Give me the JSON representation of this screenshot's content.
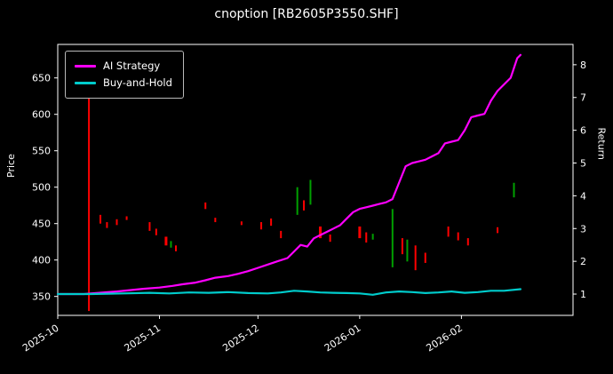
{
  "title": "cnoption [RB2605P3550.SHF]",
  "colors": {
    "background": "#000000",
    "text": "#ffffff",
    "spine": "#ffffff",
    "ai_strategy": "#ff00ff",
    "buy_and_hold": "#00cccc",
    "up_marker": "#00a000",
    "down_marker": "#ff0000"
  },
  "chart_data": {
    "type": "line",
    "title": "cnoption [RB2605P3550.SHF]",
    "xlabel": "",
    "ylabel_left": "Price",
    "ylabel_right": "Return",
    "legend_position": "upper-left",
    "grid": false,
    "xlim": [
      0,
      157
    ],
    "x_tick_days": [
      0,
      31,
      61,
      92,
      123
    ],
    "x_ticks": [
      "2025-10",
      "2025-11",
      "2025-12",
      "2026-01",
      "2026-02"
    ],
    "left_ylim": [
      324,
      696
    ],
    "left_ticks": [
      350,
      400,
      450,
      500,
      550,
      600,
      650
    ],
    "right_ylim": [
      0.35,
      8.62
    ],
    "right_ticks": [
      1,
      2,
      3,
      4,
      5,
      6,
      7,
      8
    ],
    "series": [
      {
        "name": "AI Strategy",
        "color": "#ff00ff",
        "axis": "right",
        "x": [
          0,
          8,
          10,
          14,
          18,
          22,
          26,
          31,
          35,
          38,
          42,
          45,
          48,
          52,
          55,
          58,
          61,
          64,
          67,
          70,
          72,
          74,
          76,
          78,
          80,
          82,
          84,
          86,
          88,
          90,
          92,
          94,
          96,
          98,
          100,
          102,
          104,
          106,
          108,
          110,
          112,
          114,
          116,
          118,
          120,
          122,
          124,
          126,
          128,
          130,
          132,
          134,
          136,
          138,
          139,
          140,
          141
        ],
        "values": [
          1.0,
          1.0,
          1.02,
          1.05,
          1.08,
          1.12,
          1.16,
          1.2,
          1.25,
          1.3,
          1.35,
          1.42,
          1.5,
          1.55,
          1.62,
          1.7,
          1.8,
          1.9,
          2.0,
          2.1,
          2.3,
          2.5,
          2.45,
          2.7,
          2.8,
          2.9,
          3.0,
          3.1,
          3.3,
          3.5,
          3.6,
          3.65,
          3.7,
          3.75,
          3.8,
          3.9,
          4.4,
          4.9,
          5.0,
          5.05,
          5.1,
          5.2,
          5.3,
          5.6,
          5.65,
          5.7,
          6.0,
          6.4,
          6.45,
          6.5,
          6.9,
          7.2,
          7.4,
          7.6,
          7.9,
          8.2,
          8.3
        ]
      },
      {
        "name": "Buy-and-Hold",
        "color": "#00cccc",
        "axis": "right",
        "x": [
          0,
          10,
          20,
          28,
          34,
          40,
          46,
          52,
          58,
          64,
          68,
          72,
          76,
          80,
          84,
          88,
          92,
          96,
          100,
          104,
          108,
          112,
          116,
          120,
          124,
          128,
          132,
          136,
          141
        ],
        "values": [
          1.0,
          1.0,
          1.02,
          1.04,
          1.02,
          1.05,
          1.04,
          1.06,
          1.03,
          1.02,
          1.05,
          1.1,
          1.08,
          1.05,
          1.04,
          1.03,
          1.02,
          0.98,
          1.05,
          1.08,
          1.06,
          1.03,
          1.05,
          1.08,
          1.04,
          1.06,
          1.1,
          1.1,
          1.15
        ]
      }
    ],
    "price_markers": [
      {
        "d": 9.5,
        "lo": 330,
        "hi": 655,
        "color": "#ff0000",
        "w": 2
      },
      {
        "d": 13,
        "lo": 450,
        "hi": 462,
        "color": "#ff0000",
        "w": 2
      },
      {
        "d": 15,
        "lo": 444,
        "hi": 452,
        "color": "#ff0000",
        "w": 2
      },
      {
        "d": 18,
        "lo": 448,
        "hi": 456,
        "color": "#ff0000",
        "w": 2
      },
      {
        "d": 21,
        "lo": 455,
        "hi": 460,
        "color": "#ff0000",
        "w": 2
      },
      {
        "d": 28,
        "lo": 440,
        "hi": 452,
        "color": "#ff0000",
        "w": 2
      },
      {
        "d": 30,
        "lo": 434,
        "hi": 443,
        "color": "#ff0000",
        "w": 2
      },
      {
        "d": 33,
        "lo": 420,
        "hi": 432,
        "color": "#ff0000",
        "w": 3
      },
      {
        "d": 34.5,
        "lo": 417,
        "hi": 426,
        "color": "#00a000",
        "w": 2
      },
      {
        "d": 36,
        "lo": 412,
        "hi": 420,
        "color": "#ff0000",
        "w": 2
      },
      {
        "d": 45,
        "lo": 470,
        "hi": 479,
        "color": "#ff0000",
        "w": 2
      },
      {
        "d": 48,
        "lo": 452,
        "hi": 458,
        "color": "#ff0000",
        "w": 2
      },
      {
        "d": 56,
        "lo": 448,
        "hi": 453,
        "color": "#ff0000",
        "w": 2
      },
      {
        "d": 62,
        "lo": 442,
        "hi": 452,
        "color": "#ff0000",
        "w": 2
      },
      {
        "d": 65,
        "lo": 447,
        "hi": 457,
        "color": "#ff0000",
        "w": 2
      },
      {
        "d": 68,
        "lo": 430,
        "hi": 440,
        "color": "#ff0000",
        "w": 2
      },
      {
        "d": 73,
        "lo": 462,
        "hi": 500,
        "color": "#00a000",
        "w": 2
      },
      {
        "d": 75,
        "lo": 468,
        "hi": 482,
        "color": "#ff0000",
        "w": 2
      },
      {
        "d": 77,
        "lo": 476,
        "hi": 510,
        "color": "#00a000",
        "w": 2
      },
      {
        "d": 80,
        "lo": 430,
        "hi": 446,
        "color": "#ff0000",
        "w": 3
      },
      {
        "d": 83,
        "lo": 425,
        "hi": 435,
        "color": "#ff0000",
        "w": 2
      },
      {
        "d": 92,
        "lo": 430,
        "hi": 446,
        "color": "#ff0000",
        "w": 3
      },
      {
        "d": 94,
        "lo": 424,
        "hi": 438,
        "color": "#ff0000",
        "w": 2
      },
      {
        "d": 96,
        "lo": 428,
        "hi": 436,
        "color": "#00a000",
        "w": 2
      },
      {
        "d": 102,
        "lo": 390,
        "hi": 470,
        "color": "#00a000",
        "w": 2
      },
      {
        "d": 105,
        "lo": 408,
        "hi": 430,
        "color": "#ff0000",
        "w": 2
      },
      {
        "d": 106.5,
        "lo": 398,
        "hi": 428,
        "color": "#00a000",
        "w": 2
      },
      {
        "d": 109,
        "lo": 386,
        "hi": 420,
        "color": "#ff0000",
        "w": 2
      },
      {
        "d": 112,
        "lo": 396,
        "hi": 410,
        "color": "#ff0000",
        "w": 2
      },
      {
        "d": 119,
        "lo": 432,
        "hi": 446,
        "color": "#ff0000",
        "w": 2
      },
      {
        "d": 122,
        "lo": 427,
        "hi": 438,
        "color": "#ff0000",
        "w": 2
      },
      {
        "d": 125,
        "lo": 420,
        "hi": 430,
        "color": "#ff0000",
        "w": 2
      },
      {
        "d": 134,
        "lo": 437,
        "hi": 445,
        "color": "#ff0000",
        "w": 2
      },
      {
        "d": 139,
        "lo": 486,
        "hi": 506,
        "color": "#00a000",
        "w": 2
      }
    ]
  }
}
